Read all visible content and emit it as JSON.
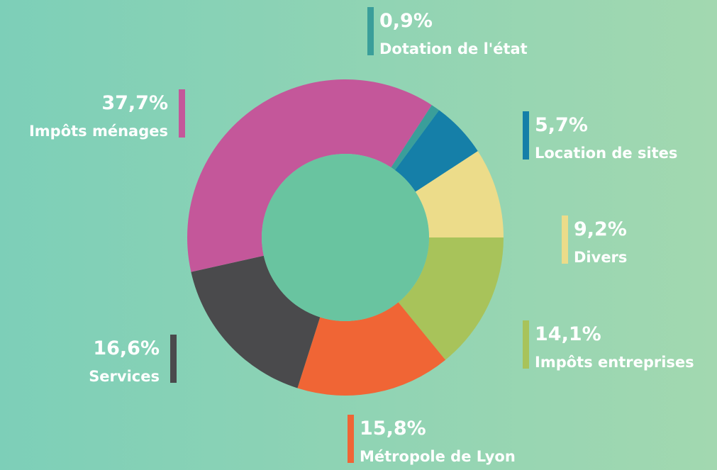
{
  "chart_data": {
    "type": "donut",
    "categories": [
      "Impôts entreprises",
      "Métropole de Lyon",
      "Services",
      "Impôts ménages",
      "Dotation de l'état",
      "Location de sites",
      "Divers"
    ],
    "values": [
      14.1,
      15.8,
      16.6,
      37.7,
      0.9,
      5.7,
      9.2
    ],
    "value_labels": [
      "14,1%",
      "15,8%",
      "16,6%",
      "37,7%",
      "0,9%",
      "5,7%",
      "9,2%"
    ],
    "colors": [
      "#a8c35a",
      "#f06535",
      "#4a4a4c",
      "#c4579a",
      "#3a9e9a",
      "#157fa8",
      "#ecdc8a"
    ]
  }
}
